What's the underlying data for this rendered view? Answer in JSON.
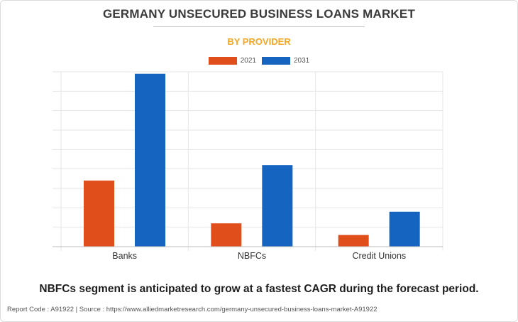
{
  "title": "GERMANY UNSECURED BUSINESS LOANS MARKET",
  "subtitle": "BY PROVIDER",
  "headline": "NBFCs segment is anticipated to grow at a fastest CAGR during the forecast period.",
  "footer": "Report Code : A91922  |  Source : https://www.alliedmarketresearch.com/germany-unsecured-business-loans-market-A91922",
  "colors": {
    "title": "#3a3a3a",
    "subtitle": "#f5a623",
    "series_2021": "#e04e1b",
    "series_2031": "#1565c0",
    "grid": "#e6e6e6",
    "axis": "#bdbdbd"
  },
  "chart_data": {
    "type": "bar",
    "title": "GERMANY UNSECURED BUSINESS LOANS MARKET",
    "subtitle": "BY PROVIDER",
    "categories": [
      "Banks",
      "NBFCs",
      "Credit Unions"
    ],
    "series": [
      {
        "name": "2021",
        "color": "#e04e1b",
        "values": [
          3.4,
          1.2,
          0.6
        ]
      },
      {
        "name": "2031",
        "color": "#1565c0",
        "values": [
          8.9,
          4.2,
          1.8
        ]
      }
    ],
    "ylim": [
      0,
      9
    ],
    "gridlines": 9,
    "grid": true,
    "legend_position": "top-center",
    "ytick_labels_visible": false
  }
}
